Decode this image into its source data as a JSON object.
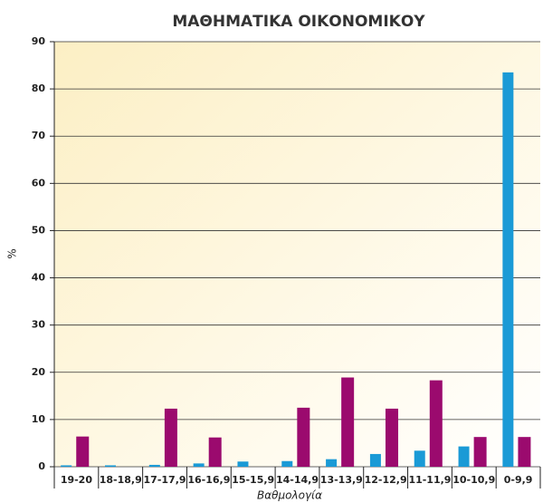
{
  "chart_data": {
    "type": "bar",
    "title": "ΜΑΘΗΜΑΤΙΚΑ ΟΙΚΟΝΟΜΙΚΟΥ",
    "x_label": "Βαθμολογία",
    "y_label": "%",
    "categories": [
      "19-20",
      "18-18,9",
      "17-17,9",
      "16-16,9",
      "15-15,9",
      "14-14,9",
      "13-13,9",
      "12-12,9",
      "11-11,9",
      "10-10,9",
      "0-9,9"
    ],
    "series": [
      {
        "color": "#1a9ad6",
        "values": [
          0.3,
          0.3,
          0.4,
          0.7,
          1.1,
          1.2,
          1.6,
          2.7,
          3.4,
          4.3,
          83.5
        ]
      },
      {
        "color": "#9b0a6e",
        "values": [
          6.4,
          0,
          12.3,
          6.2,
          0,
          12.5,
          18.9,
          12.3,
          18.3,
          6.3,
          6.3
        ]
      }
    ],
    "ylim": [
      0,
      90
    ],
    "yticks": [
      0,
      10,
      20,
      30,
      40,
      50,
      60,
      70,
      80,
      90
    ],
    "grid": true
  }
}
